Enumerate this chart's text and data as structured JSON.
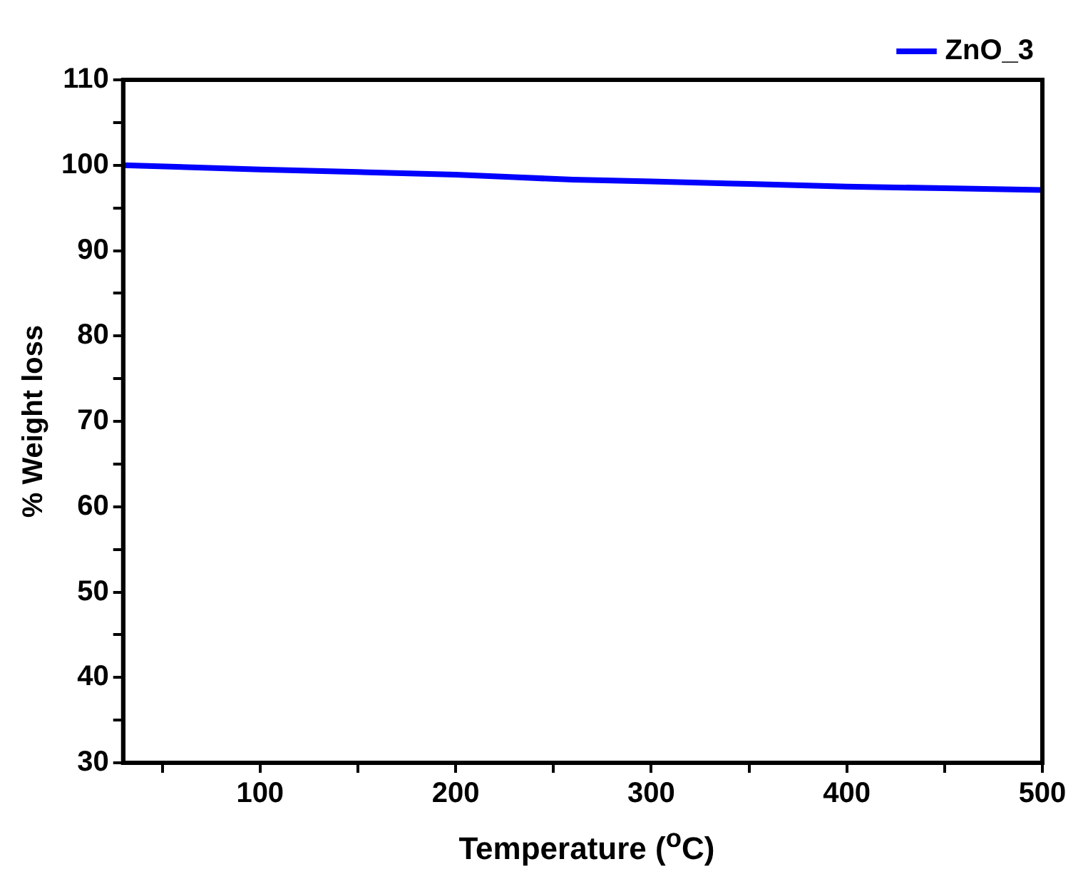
{
  "chart_data": {
    "type": "line",
    "xlabel": "Temperature ($^{o}$C)",
    "ylabel": "% Weight loss",
    "x": [
      30,
      100,
      150,
      200,
      230,
      260,
      300,
      350,
      400,
      450,
      500
    ],
    "series": [
      {
        "name": "ZnO_3",
        "color": "#0000ff",
        "values": [
          100,
          99.5,
          99.2,
          98.9,
          98.6,
          98.3,
          98.1,
          97.8,
          97.5,
          97.3,
          97.1
        ]
      }
    ],
    "xlim": [
      30,
      500
    ],
    "ylim": [
      30,
      110
    ],
    "xticks": [
      {
        "value": 50,
        "label": null
      },
      100,
      {
        "value": 150,
        "label": null
      },
      200,
      {
        "value": 250,
        "label": null
      },
      300,
      {
        "value": 350,
        "label": null
      },
      400,
      {
        "value": 450,
        "label": null
      },
      500
    ],
    "yticks": [
      30,
      {
        "value": 35,
        "label": null
      },
      40,
      {
        "value": 45,
        "label": null
      },
      50,
      {
        "value": 55,
        "label": null
      },
      60,
      {
        "value": 65,
        "label": null
      },
      70,
      {
        "value": 75,
        "label": null
      },
      80,
      {
        "value": 85,
        "label": null
      },
      90,
      {
        "value": 95,
        "label": null
      },
      100,
      {
        "value": 105,
        "label": null
      },
      110
    ],
    "grid": false,
    "legend": "top right",
    "marker": "none",
    "line_style": "solid"
  }
}
